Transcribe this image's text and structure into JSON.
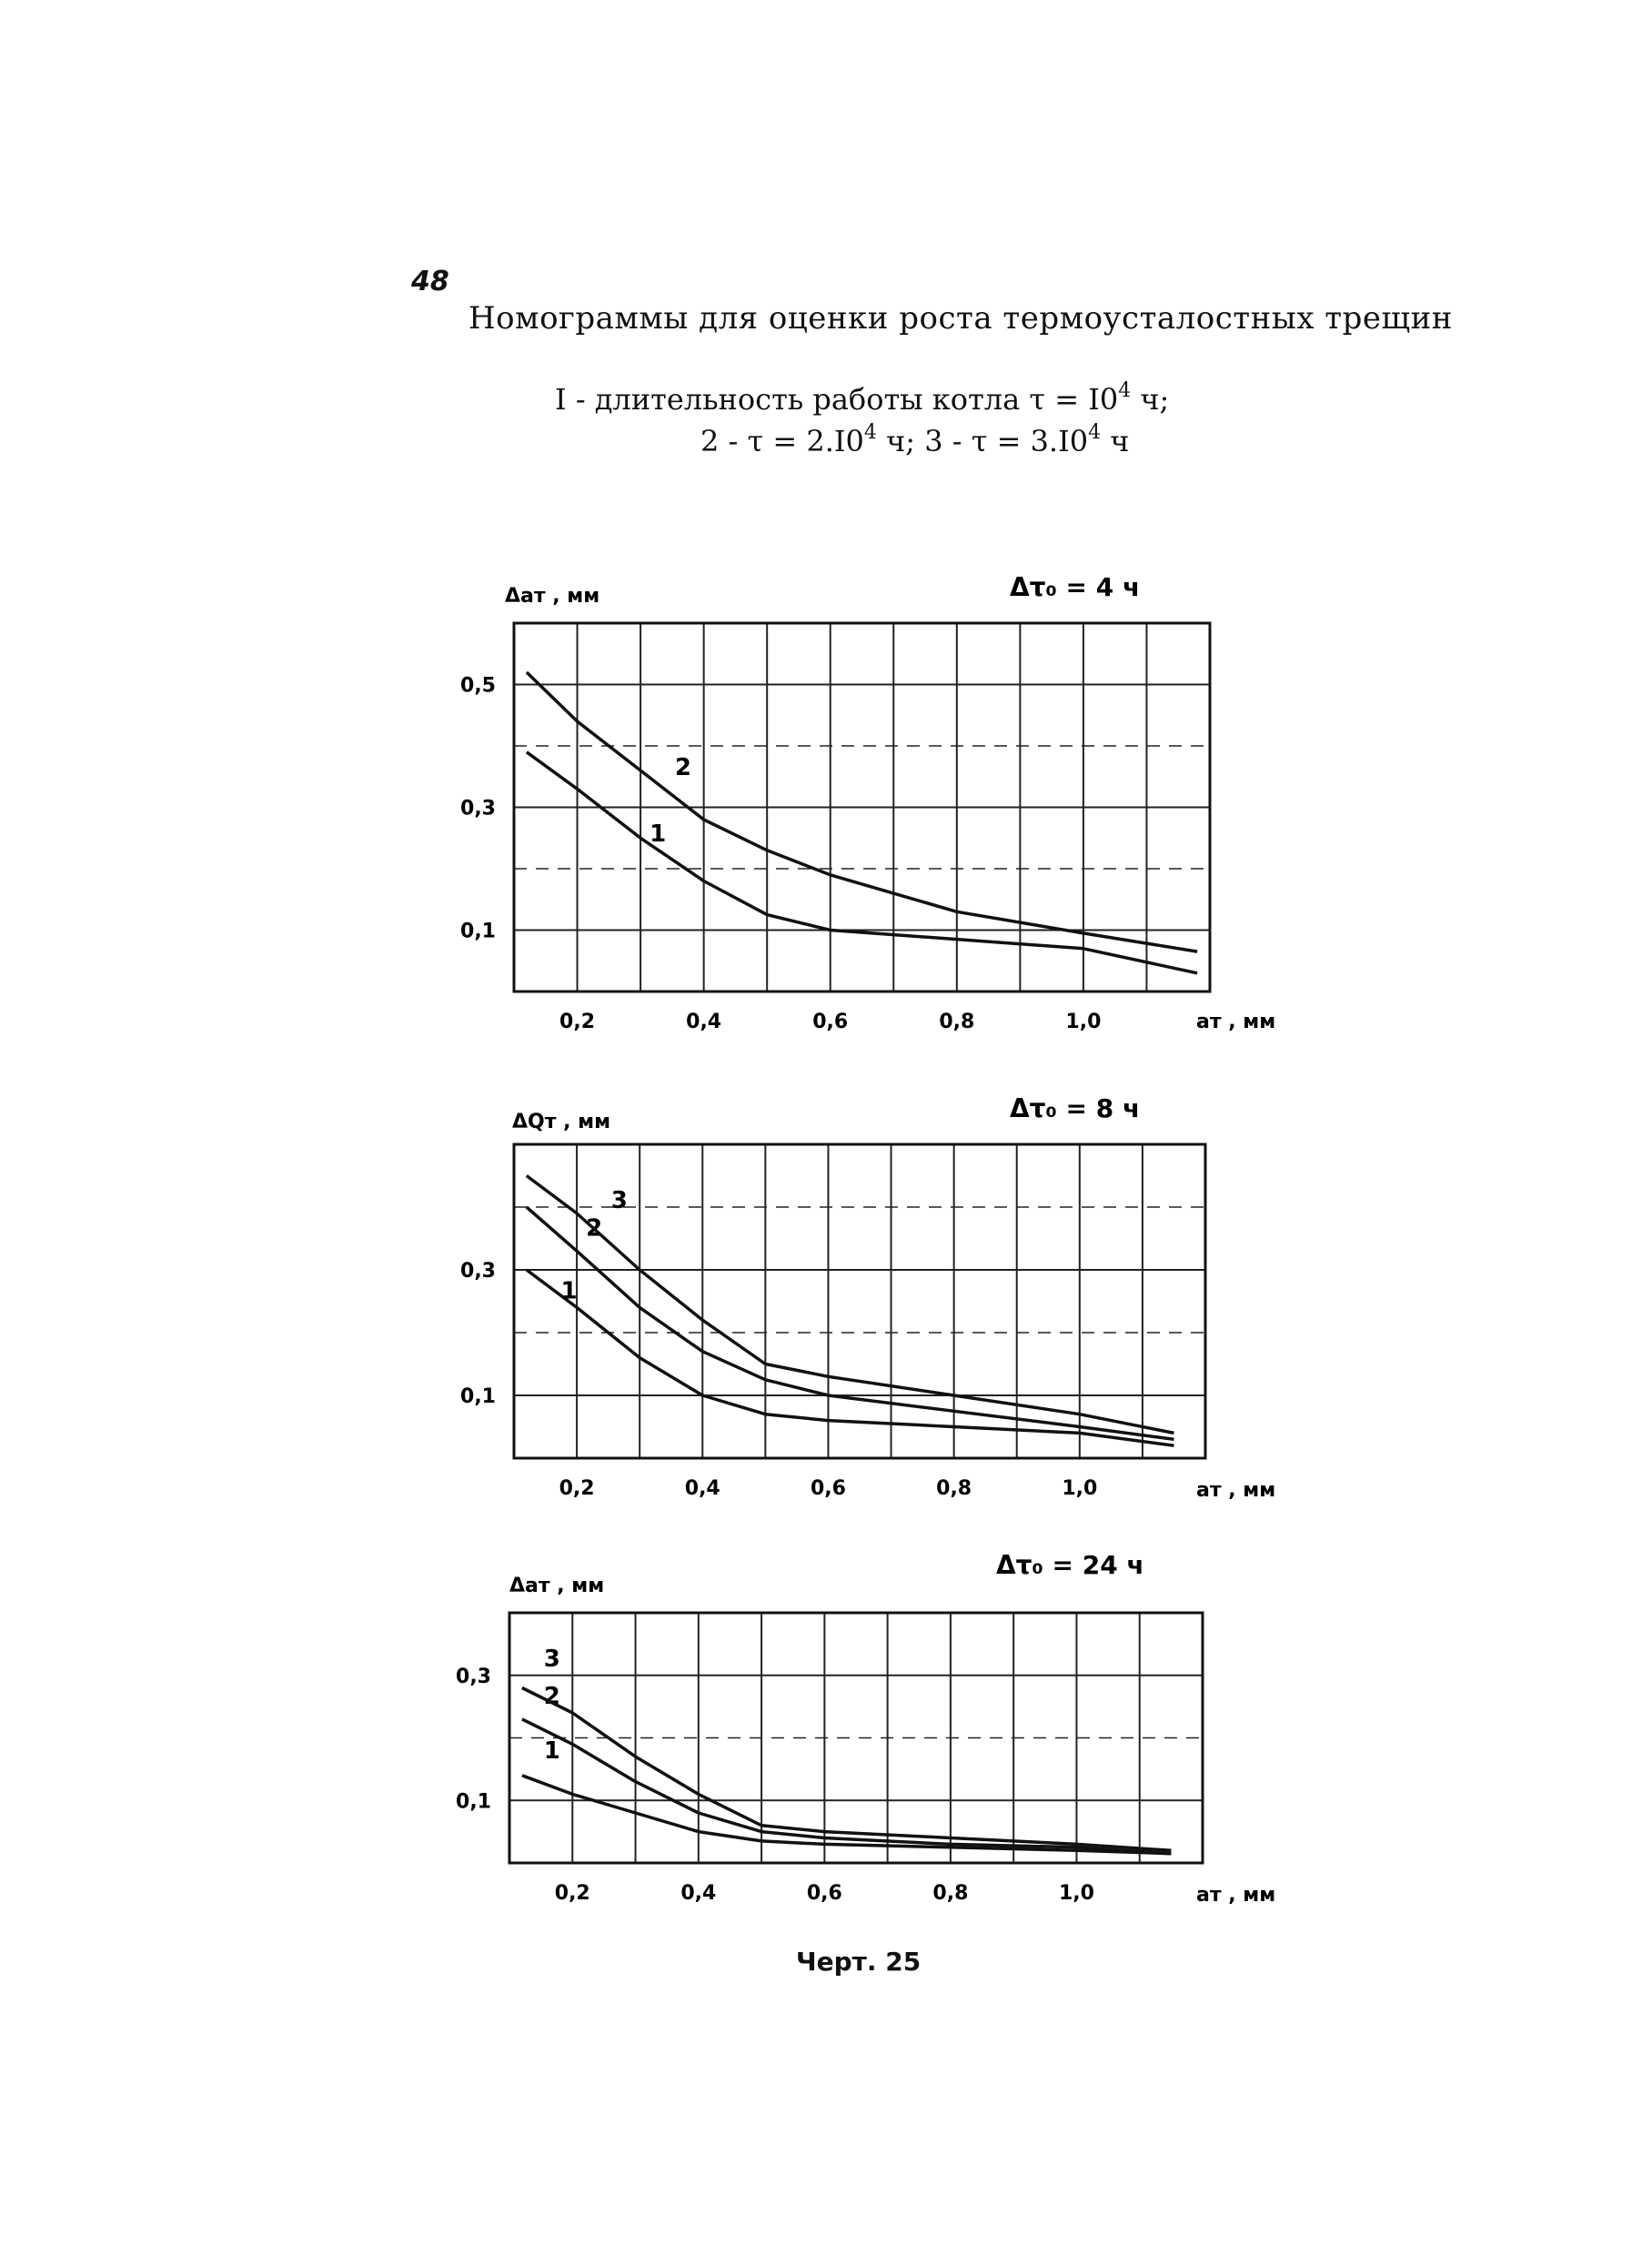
{
  "page": {
    "number": "48",
    "title": "Номограммы для оценки роста термоусталостных трещин",
    "legend_line1": {
      "text": "I - длительность работы котла τ = I0",
      "sup": "4",
      "tail": " ч;"
    },
    "legend_line2": {
      "parts": [
        "2 - τ = 2.I0",
        "4",
        " ч; 3 - τ = 3.I0",
        "4",
        " ч"
      ]
    },
    "caption": "Черт. 25"
  },
  "chart_data": [
    {
      "type": "line",
      "condition_label": "Δτ₀ = 4 ч",
      "ylabel": "Δaт , мм",
      "xlabel": "aт , мм",
      "xlim": [
        0.1,
        1.2
      ],
      "ylim": [
        0.0,
        0.6
      ],
      "xticks": [
        0.2,
        0.4,
        0.6,
        0.8,
        1.0
      ],
      "xtick_labels": [
        "0,2",
        "0,4",
        "0,6",
        "0,8",
        "1,0"
      ],
      "yticks": [
        0.1,
        0.3,
        0.5
      ],
      "ytick_labels": [
        "0,1",
        "0,3",
        "0,5"
      ],
      "grid": true,
      "series": [
        {
          "name": "1",
          "x": [
            0.12,
            0.2,
            0.3,
            0.4,
            0.5,
            0.6,
            0.8,
            1.0,
            1.18
          ],
          "y": [
            0.39,
            0.33,
            0.25,
            0.18,
            0.125,
            0.1,
            0.085,
            0.07,
            0.03
          ]
        },
        {
          "name": "2",
          "x": [
            0.12,
            0.2,
            0.3,
            0.4,
            0.5,
            0.6,
            0.8,
            1.0,
            1.18
          ],
          "y": [
            0.52,
            0.44,
            0.36,
            0.28,
            0.23,
            0.19,
            0.13,
            0.095,
            0.065
          ]
        }
      ]
    },
    {
      "type": "line",
      "condition_label": "Δτ₀ = 8 ч",
      "ylabel": "ΔQт , мм",
      "xlabel": "aт , мм",
      "xlim": [
        0.1,
        1.2
      ],
      "ylim": [
        0.0,
        0.5
      ],
      "xticks": [
        0.2,
        0.4,
        0.6,
        0.8,
        1.0
      ],
      "xtick_labels": [
        "0,2",
        "0,4",
        "0,6",
        "0,8",
        "1,0"
      ],
      "yticks": [
        0.1,
        0.3
      ],
      "ytick_labels": [
        "0,1",
        "0,3"
      ],
      "grid": true,
      "series": [
        {
          "name": "1",
          "x": [
            0.12,
            0.2,
            0.3,
            0.4,
            0.5,
            0.6,
            0.8,
            1.0,
            1.15
          ],
          "y": [
            0.3,
            0.24,
            0.16,
            0.1,
            0.07,
            0.06,
            0.05,
            0.04,
            0.02
          ]
        },
        {
          "name": "2",
          "x": [
            0.12,
            0.2,
            0.3,
            0.4,
            0.5,
            0.6,
            0.8,
            1.0,
            1.15
          ],
          "y": [
            0.4,
            0.33,
            0.24,
            0.17,
            0.125,
            0.1,
            0.075,
            0.05,
            0.03
          ]
        },
        {
          "name": "3",
          "x": [
            0.12,
            0.2,
            0.3,
            0.4,
            0.5,
            0.6,
            0.8,
            1.0,
            1.15
          ],
          "y": [
            0.45,
            0.39,
            0.3,
            0.22,
            0.15,
            0.13,
            0.1,
            0.07,
            0.04
          ]
        }
      ]
    },
    {
      "type": "line",
      "condition_label": "Δτ₀ = 24 ч",
      "ylabel": "Δaт , мм",
      "xlabel": "aт , мм",
      "xlim": [
        0.1,
        1.2
      ],
      "ylim": [
        0.0,
        0.4
      ],
      "xticks": [
        0.2,
        0.4,
        0.6,
        0.8,
        1.0
      ],
      "xtick_labels": [
        "0,2",
        "0,4",
        "0,6",
        "0,8",
        "1,0"
      ],
      "yticks": [
        0.1,
        0.3
      ],
      "ytick_labels": [
        "0,1",
        "0,3"
      ],
      "grid": true,
      "series": [
        {
          "name": "1",
          "x": [
            0.12,
            0.2,
            0.3,
            0.4,
            0.5,
            0.6,
            0.8,
            1.0,
            1.15
          ],
          "y": [
            0.14,
            0.11,
            0.08,
            0.05,
            0.035,
            0.03,
            0.025,
            0.02,
            0.015
          ]
        },
        {
          "name": "2",
          "x": [
            0.12,
            0.2,
            0.3,
            0.4,
            0.5,
            0.6,
            0.8,
            1.0,
            1.15
          ],
          "y": [
            0.23,
            0.19,
            0.13,
            0.08,
            0.05,
            0.04,
            0.03,
            0.025,
            0.015
          ]
        },
        {
          "name": "3",
          "x": [
            0.12,
            0.2,
            0.3,
            0.4,
            0.5,
            0.6,
            0.8,
            1.0,
            1.15
          ],
          "y": [
            0.28,
            0.24,
            0.17,
            0.11,
            0.06,
            0.05,
            0.04,
            0.03,
            0.02
          ]
        }
      ]
    }
  ]
}
